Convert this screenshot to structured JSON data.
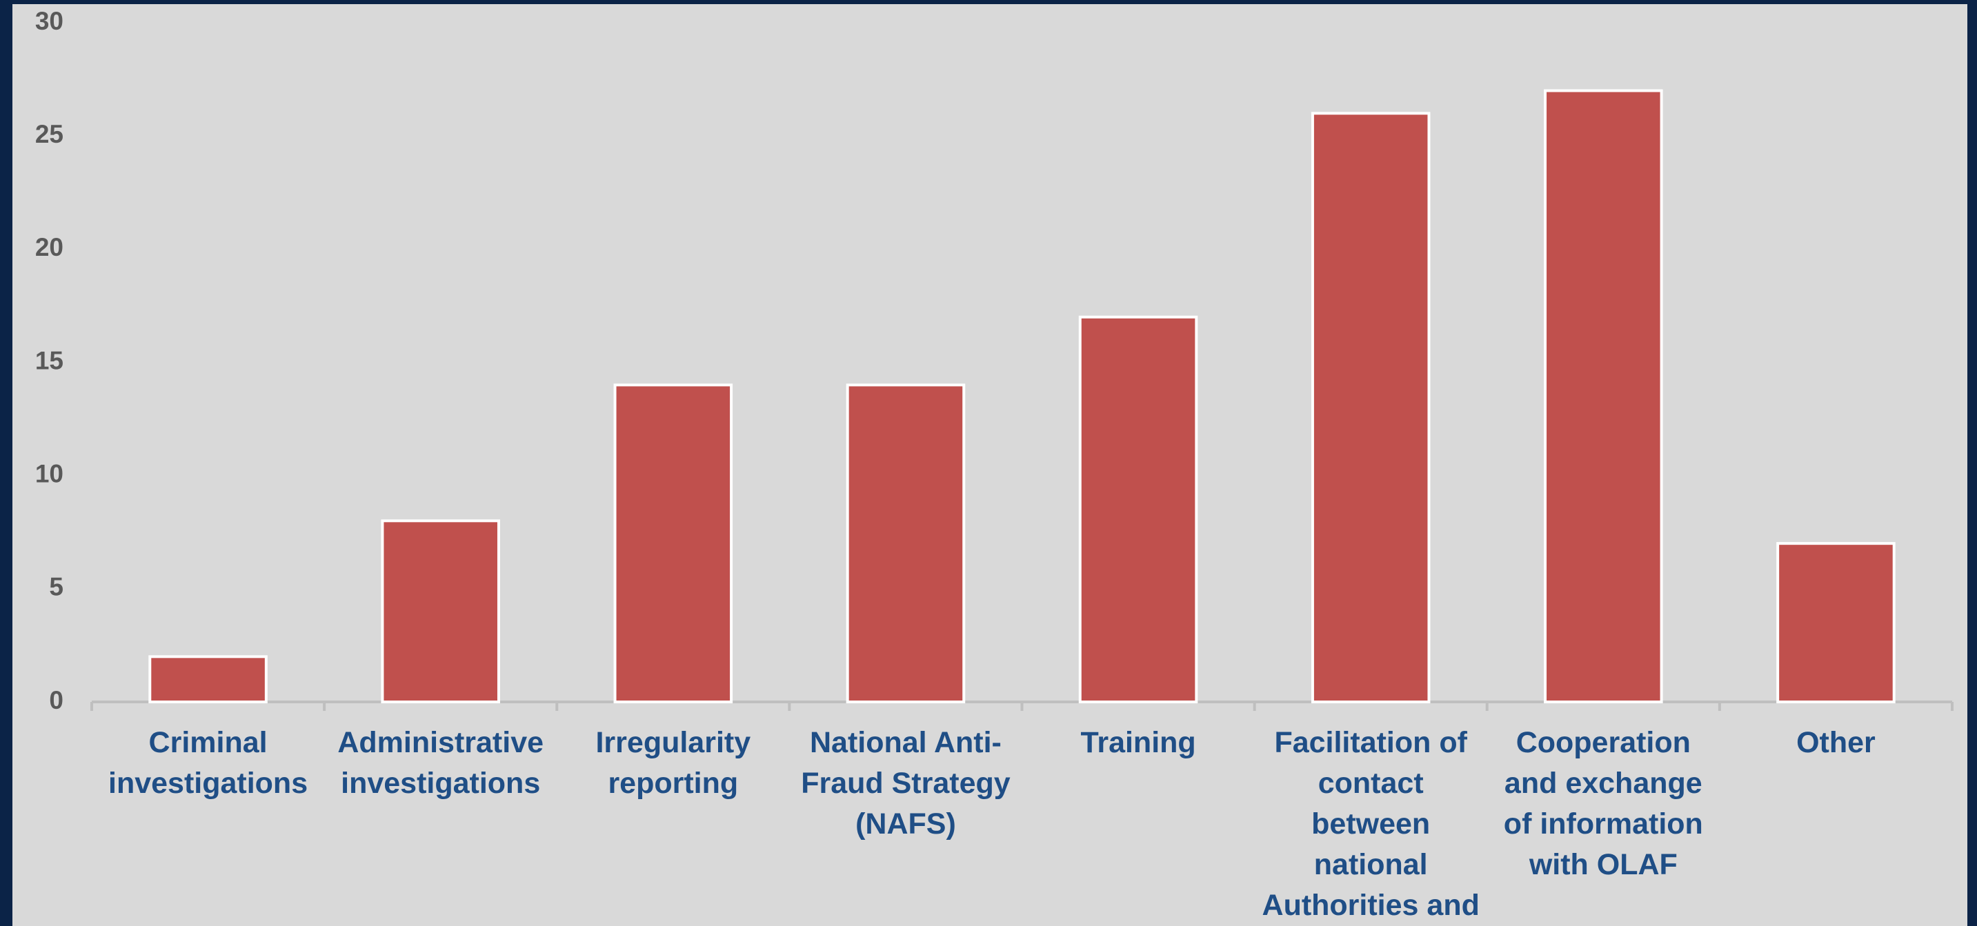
{
  "chart_data": {
    "type": "bar",
    "categories": [
      "Criminal investigations",
      "Administrative investigations",
      "Irregularity reporting",
      "National Anti-Fraud Strategy (NAFS)",
      "Training",
      "Facilitation of contact between national Authorities and OLAF",
      "Cooperation and exchange of information with OLAF",
      "Other"
    ],
    "values": [
      2,
      8,
      14,
      14,
      17,
      26,
      27,
      7
    ],
    "color": "#c0504d",
    "ylim": [
      0,
      30
    ],
    "yticks": [
      0,
      5,
      10,
      15,
      20,
      25,
      30
    ],
    "grid": false
  }
}
